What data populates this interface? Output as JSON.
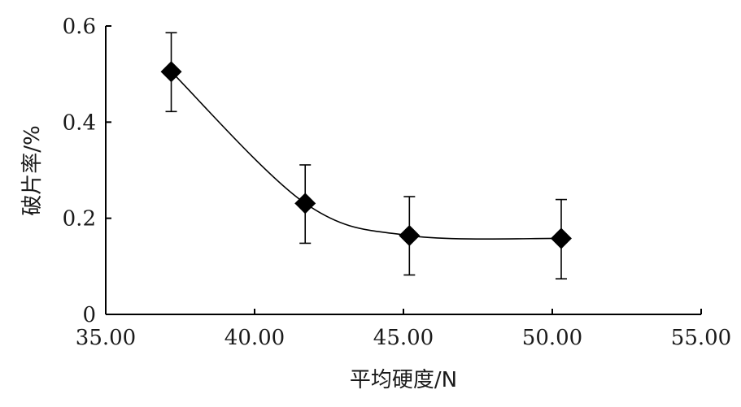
{
  "chart_data": {
    "type": "scatter",
    "xlabel": "平均硬度/N",
    "ylabel": "破片率/%",
    "xlim": [
      35,
      55
    ],
    "ylim": [
      0,
      0.6
    ],
    "x_ticks": [
      "35.00",
      "40.00",
      "45.00",
      "50.00",
      "55.00"
    ],
    "x_tick_values": [
      35,
      40,
      45,
      50,
      55
    ],
    "y_ticks": [
      "0",
      "0.2",
      "0.4",
      "0.6"
    ],
    "y_tick_values": [
      0,
      0.2,
      0.4,
      0.6
    ],
    "grid": false,
    "marker": "diamond",
    "smooth_line": true,
    "points": [
      {
        "x": 37.2,
        "y": 0.505,
        "err_low": 0.422,
        "err_high": 0.586
      },
      {
        "x": 41.7,
        "y": 0.231,
        "err_low": 0.148,
        "err_high": 0.311
      },
      {
        "x": 45.2,
        "y": 0.164,
        "err_low": 0.082,
        "err_high": 0.245
      },
      {
        "x": 50.3,
        "y": 0.158,
        "err_low": 0.074,
        "err_high": 0.239
      }
    ],
    "color": "#000000"
  }
}
